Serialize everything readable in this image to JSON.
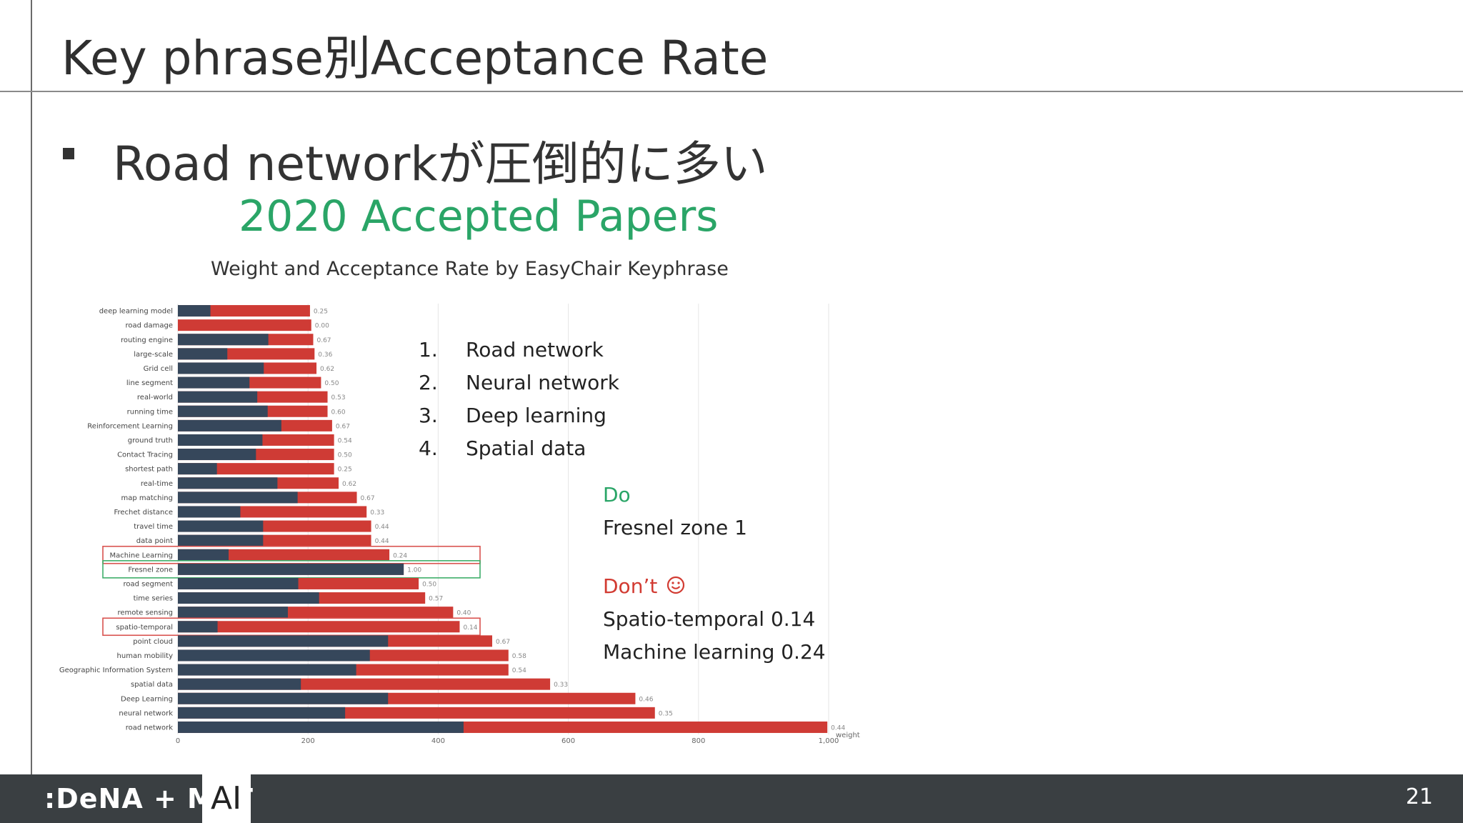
{
  "slide": {
    "title": "Key phrase別Acceptance Rate",
    "bullet": "Road networkが圧倒的に多い",
    "page_number": "21"
  },
  "figure": {
    "title": "2020 Accepted Papers",
    "subtitle": "Weight and Acceptance Rate by EasyChair Keyphrase"
  },
  "ranking": [
    {
      "num": "1.",
      "label": "Road network"
    },
    {
      "num": "2.",
      "label": "Neural network"
    },
    {
      "num": "3.",
      "label": "Deep learning"
    },
    {
      "num": "4.",
      "label": "Spatial data"
    }
  ],
  "do_block": {
    "heading": "Do",
    "line": "Fresnel zone 1"
  },
  "dont_block": {
    "heading": "Don’t",
    "icon": "smiley-icon",
    "lines": [
      "Spatio-temporal 0.14",
      "Machine learning 0.24"
    ]
  },
  "footer": {
    "brand": ":DeNA + MoT",
    "ai_label": "AI"
  },
  "colors": {
    "total_bar": "#cf3b35",
    "accepted_bar": "#36475b",
    "title_green": "#2aa567",
    "highlight_red": "#d9534f",
    "highlight_green": "#3fae6a"
  },
  "chart_data": {
    "type": "bar",
    "orientation": "horizontal",
    "xlabel": "weight",
    "xlim": [
      0,
      1000
    ],
    "xticks": [
      "0",
      "200",
      "400",
      "600",
      "800",
      "1,000"
    ],
    "categories": [
      "deep learning model",
      "road damage",
      "routing engine",
      "large-scale",
      "Grid cell",
      "line segment",
      "real-world",
      "running time",
      "Reinforcement Learning",
      "ground truth",
      "Contact Tracing",
      "shortest path",
      "real-time",
      "map matching",
      "Frechet distance",
      "travel time",
      "data point",
      "Machine Learning",
      "Fresnel zone",
      "road segment",
      "time series",
      "remote sensing",
      "spatio-temporal",
      "point cloud",
      "human mobility",
      "Geographic Information System",
      "spatial data",
      "Deep Learning",
      "neural network",
      "road network"
    ],
    "series": [
      {
        "values": [
          203,
          205,
          208,
          210,
          213,
          220,
          230,
          230,
          237,
          240,
          240,
          240,
          247,
          275,
          290,
          297,
          297,
          325,
          347,
          370,
          380,
          423,
          433,
          483,
          508,
          508,
          572,
          703,
          733,
          998
        ]
      },
      {
        "values": [
          50,
          0,
          139,
          76,
          132,
          110,
          122,
          138,
          159,
          130,
          120,
          60,
          153,
          184,
          96,
          131,
          131,
          78,
          347,
          185,
          217,
          169,
          61,
          323,
          295,
          274,
          189,
          323,
          257,
          439
        ]
      }
    ],
    "rate_labels": [
      "0.25",
      "0.00",
      "0.67",
      "0.36",
      "0.62",
      "0.50",
      "0.53",
      "0.60",
      "0.67",
      "0.54",
      "0.50",
      "0.25",
      "0.62",
      "0.67",
      "0.33",
      "0.44",
      "0.44",
      "0.24",
      "1.00",
      "0.50",
      "0.57",
      "0.40",
      "0.14",
      "0.67",
      "0.58",
      "0.54",
      "0.33",
      "0.46",
      "0.35",
      "0.44"
    ],
    "highlight_red": [
      "Machine Learning",
      "spatio-temporal"
    ],
    "highlight_green": [
      "Fresnel zone"
    ]
  }
}
